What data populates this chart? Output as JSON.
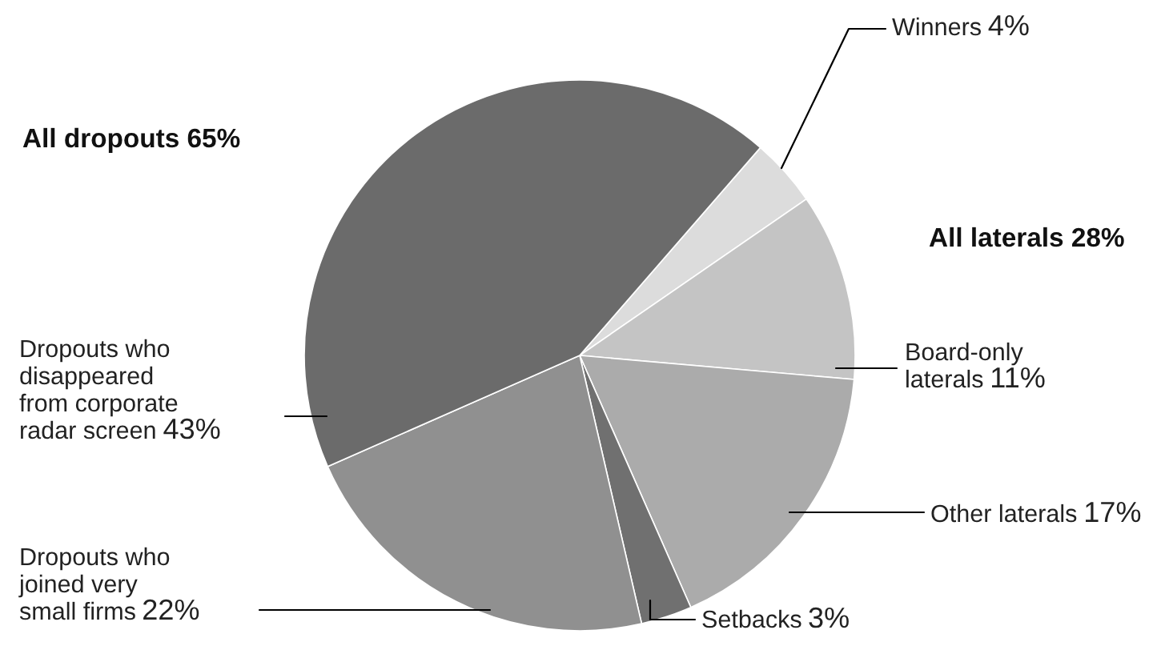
{
  "chart_data": {
    "type": "pie",
    "categories": [
      "Winners",
      "Board-only\nlaterals",
      "Other laterals",
      "Setbacks",
      "Dropouts who\njoined very\nsmall firms",
      "Dropouts who\ndisappeared\nfrom corporate\nradar screen"
    ],
    "values": [
      4,
      11,
      17,
      3,
      22,
      43
    ],
    "value_labels": [
      "4%",
      "11%",
      "17%",
      "3%",
      "22%",
      "43%"
    ],
    "colors": [
      "#dcdcdc",
      "#c4c4c4",
      "#ababab",
      "#707070",
      "#909090",
      "#6b6b6b"
    ],
    "annotations": [
      "All dropouts 65%",
      "All laterals 28%"
    ],
    "legend": false
  }
}
